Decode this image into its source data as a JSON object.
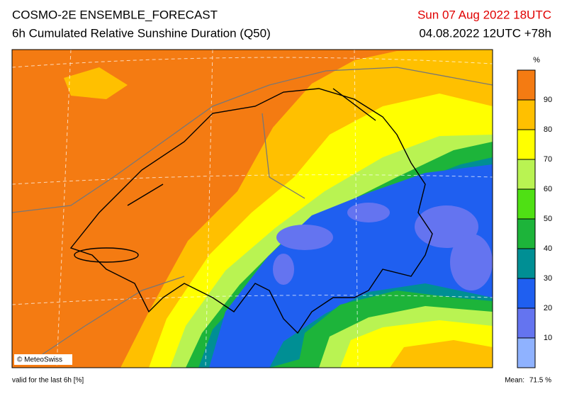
{
  "header": {
    "title": "COSMO-2E ENSEMBLE_FORECAST",
    "subtitle": "6h Cumulated Relative Sunshine Duration (Q50)",
    "valid_time": "Sun 07 Aug 2022 18UTC",
    "run": "04.08.2022 12UTC +78h"
  },
  "map": {
    "credit": "© MeteoSwiss"
  },
  "colorbar": {
    "unit": "%",
    "bins": [
      0,
      10,
      20,
      30,
      40,
      50,
      60,
      70,
      80,
      90,
      100
    ],
    "ticks": [
      10,
      20,
      30,
      40,
      50,
      60,
      70,
      80,
      90
    ],
    "colors": [
      "#8fb2ff",
      "#6474f0",
      "#1f5ff0",
      "#008f94",
      "#1db43a",
      "#4fe014",
      "#b9f352",
      "#ffff00",
      "#ffc000",
      "#f47b12"
    ]
  },
  "footer": {
    "note": "valid for the last 6h [%]",
    "mean_label": "Mean:",
    "mean_value": "71.5 %"
  }
}
